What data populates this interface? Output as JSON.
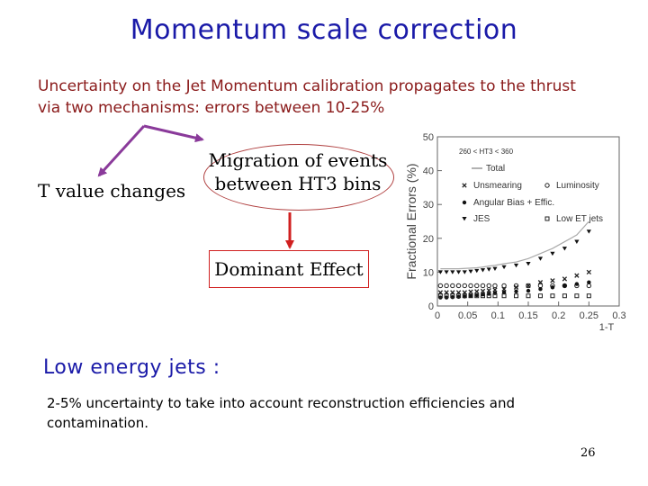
{
  "slide": {
    "title": "Momentum scale correction",
    "intro": "Uncertainty on the Jet Momentum calibration propagates to the thrust via two mechanisms: errors between 10-25%",
    "t_value_label": "T value changes",
    "migration_label": "Migration of events between HT3 bins",
    "dominant_label": "Dominant Effect",
    "low_jets_heading": "Low energy jets :",
    "low_jets_description": "2-5% uncertainty to take into account reconstruction efficiencies and contamination.",
    "page_number": "26"
  },
  "chart_data": {
    "type": "scatter",
    "title": "260 < HT3 < 360",
    "xlabel": "1-T",
    "ylabel": "Fractional Errors (%)",
    "xlim": [
      0,
      0.3
    ],
    "ylim": [
      0,
      50
    ],
    "xticks": [
      "0",
      "0.05",
      "0.1",
      "0.15",
      "0.2",
      "0.25",
      "0.3"
    ],
    "yticks": [
      "0",
      "10",
      "20",
      "30",
      "40",
      "50"
    ],
    "legend_items": [
      "Total",
      "Unsmearing",
      "Luminosity",
      "Angular Bias + Effic.",
      "JES",
      "Low ET jets"
    ],
    "x": [
      0.005,
      0.015,
      0.025,
      0.035,
      0.045,
      0.055,
      0.065,
      0.075,
      0.085,
      0.095,
      0.11,
      0.13,
      0.15,
      0.17,
      0.19,
      0.21,
      0.23,
      0.25
    ],
    "series": [
      {
        "name": "Total",
        "values": [
          11,
          11,
          11,
          11,
          11.1,
          11.2,
          11.3,
          11.5,
          11.8,
          12,
          12.5,
          13,
          14,
          15.5,
          17,
          19,
          21,
          25
        ]
      },
      {
        "name": "Unsmearing",
        "values": [
          4,
          4,
          4,
          4,
          4,
          4.2,
          4.3,
          4.4,
          4.6,
          4.8,
          5,
          5.5,
          6,
          7,
          7.5,
          8,
          9,
          10
        ]
      },
      {
        "name": "Luminosity",
        "values": [
          6,
          6,
          6,
          6,
          6,
          6,
          6,
          6,
          6,
          6,
          6,
          6,
          6,
          6,
          6,
          6,
          6,
          6
        ]
      },
      {
        "name": "Angular Bias + Effic.",
        "values": [
          2.5,
          2.5,
          2.6,
          2.7,
          2.8,
          3,
          3.2,
          3.4,
          3.6,
          3.8,
          4,
          4.3,
          4.5,
          5,
          5.5,
          6,
          6.5,
          7
        ]
      },
      {
        "name": "JES",
        "values": [
          10,
          10,
          10,
          10,
          10,
          10.2,
          10.4,
          10.6,
          10.8,
          11,
          11.5,
          12,
          12.5,
          14,
          15.5,
          17,
          19,
          22
        ]
      },
      {
        "name": "Low ET jets",
        "values": [
          3,
          3,
          3,
          3,
          3,
          3,
          3,
          3,
          3,
          3,
          3,
          3,
          3,
          3,
          3,
          3,
          3,
          3
        ]
      }
    ]
  }
}
